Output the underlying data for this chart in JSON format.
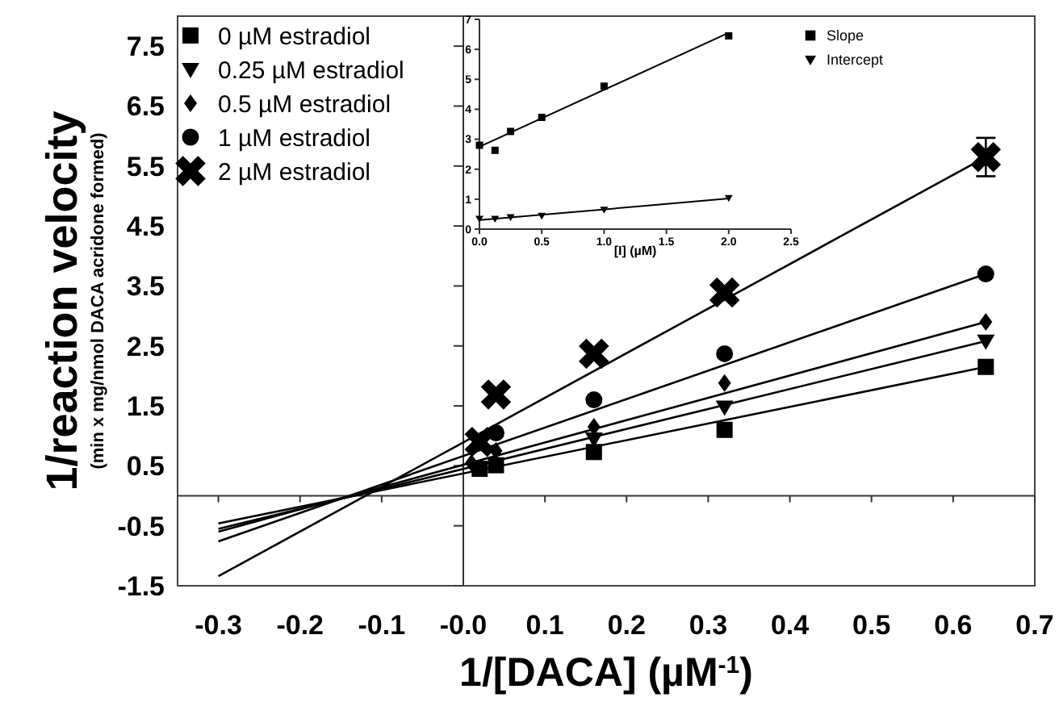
{
  "chart_data": [
    {
      "type": "scatter",
      "xlabel": "1/[DACA] (µM$^{-1}$)",
      "ylabel": "1/reaction velocity\n(min x mg/nmol DACA acridone formed)",
      "xlim": [
        -0.35,
        0.7
      ],
      "ylim": [
        -1.5,
        8
      ],
      "xticks": [
        -0.3,
        -0.2,
        -0.1,
        {
          "value": 0,
          "label": "-0.0"
        },
        0.1,
        0.2,
        0.3,
        0.4,
        0.5,
        0.6,
        0.7
      ],
      "yticks": [
        -1.5,
        -0.5,
        0.5,
        1.5,
        2.5,
        3.5,
        4.5,
        5.5,
        6.5,
        7.5
      ],
      "grid": false,
      "legend": "top left",
      "ref_lines": [
        {
          "axis": "x",
          "value": 0,
          "color": "#333333"
        }
      ],
      "x": [
        0.01,
        0.02,
        0.04,
        0.16,
        0.32,
        0.64
      ],
      "series": [
        {
          "name": "0 µM estradiol",
          "color": "#000000",
          "marker": "square",
          "values": [
            null,
            0.45,
            0.51,
            0.73,
            1.1,
            2.15
          ]
        },
        {
          "name": "0.25 µM estradiol",
          "color": "#000000",
          "marker": "triangle",
          "values": [
            null,
            null,
            null,
            0.95,
            1.48,
            2.58
          ]
        },
        {
          "name": "0.5 µM estradiol",
          "color": "#000000",
          "marker": "diamond",
          "values": [
            0.55,
            null,
            0.75,
            1.15,
            1.88,
            2.9
          ]
        },
        {
          "name": "1 µM estradiol",
          "color": "#000000",
          "marker": "circle",
          "values": [
            null,
            null,
            1.05,
            1.6,
            2.37,
            3.7
          ]
        },
        {
          "name": "2 µM estradiol",
          "color": "#000000",
          "marker": "cross",
          "values": [
            null,
            0.9,
            1.69,
            2.37,
            3.39,
            5.65
          ],
          "errors": [
            null,
            null,
            null,
            null,
            null,
            0.32
          ]
        },
        {
          "type": "line",
          "color": "#000000",
          "x": [
            -0.3,
            0.64
          ],
          "values": [
            -0.46,
            2.15
          ]
        },
        {
          "type": "line",
          "color": "#000000",
          "x": [
            -0.3,
            0.64
          ],
          "values": [
            -0.55,
            2.58
          ]
        },
        {
          "type": "line",
          "color": "#000000",
          "x": [
            -0.3,
            0.64
          ],
          "values": [
            -0.6,
            2.9
          ]
        },
        {
          "type": "line",
          "color": "#000000",
          "x": [
            -0.3,
            0.64
          ],
          "values": [
            -0.76,
            3.7
          ]
        },
        {
          "type": "line",
          "color": "#000000",
          "x": [
            -0.3,
            0.64
          ],
          "values": [
            -1.34,
            5.65
          ]
        }
      ]
    },
    {
      "type": "scatter",
      "xlabel": "[I] (µM)",
      "xlim": [
        0,
        2.5
      ],
      "ylim": [
        0,
        7
      ],
      "xticks": [
        {
          "value": 0,
          "label": "0.0"
        },
        0.5,
        {
          "value": 1,
          "label": "1.0"
        },
        1.5,
        {
          "value": 2,
          "label": "2.0"
        },
        2.5
      ],
      "yticks": [
        0,
        1,
        2,
        3,
        4,
        5,
        6,
        7
      ],
      "grid": false,
      "legend": "top right",
      "x": [
        0,
        0.125,
        0.25,
        0.5,
        1,
        2
      ],
      "series": [
        {
          "name": "Slope",
          "color": "#000000",
          "marker": "square",
          "values": [
            2.8,
            2.63,
            3.26,
            3.73,
            4.77,
            6.45
          ]
        },
        {
          "name": "Intercept",
          "color": "#000000",
          "marker": "triangle",
          "values": [
            0.35,
            0.35,
            0.4,
            0.45,
            0.65,
            1.04
          ]
        },
        {
          "type": "line",
          "color": "#000000",
          "x": [
            0,
            2
          ],
          "values": [
            2.75,
            6.55
          ]
        },
        {
          "type": "line",
          "color": "#000000",
          "x": [
            0,
            2
          ],
          "values": [
            0.3,
            1.02
          ]
        }
      ]
    }
  ]
}
